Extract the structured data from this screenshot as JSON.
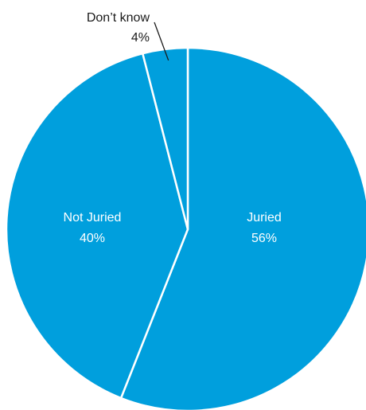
{
  "chart_data": {
    "type": "pie",
    "categories": [
      "Juried",
      "Not Juried",
      "Don’t know"
    ],
    "values": [
      56,
      40,
      4
    ],
    "value_labels": [
      "56%",
      "40%",
      "4%"
    ],
    "colors": [
      "#009fdd",
      "#009fdd",
      "#009fdd"
    ],
    "slice_border_color": "#ffffff",
    "label_colors": {
      "inside": "#ffffff",
      "outside": "#1a1a1a"
    },
    "start": "12 o'clock",
    "direction": "clockwise"
  }
}
